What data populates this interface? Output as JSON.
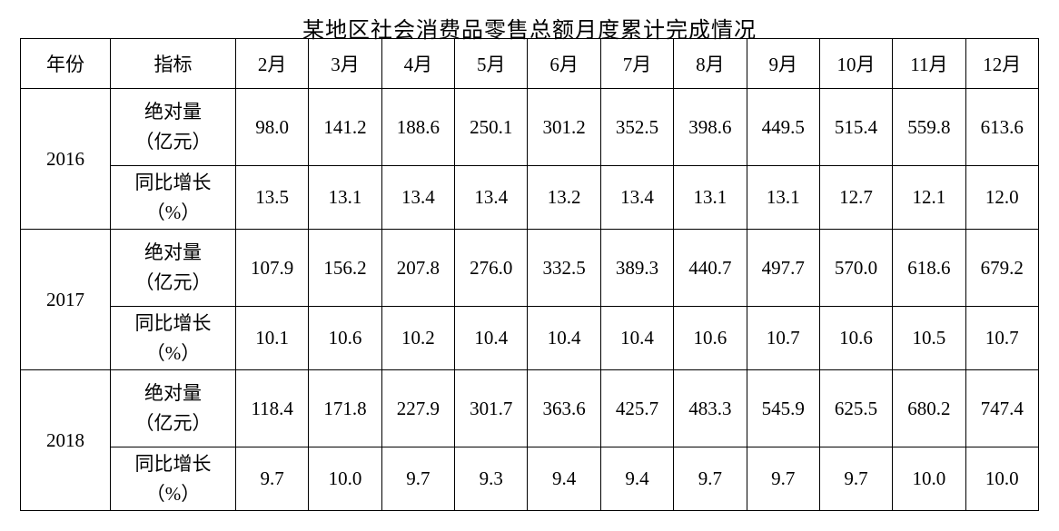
{
  "page": {
    "title": "某地区社会消费品零售总额月度累计完成情况"
  },
  "table": {
    "header": {
      "year": "年份",
      "indicator": "指标",
      "months": [
        "2月",
        "3月",
        "4月",
        "5月",
        "6月",
        "7月",
        "8月",
        "9月",
        "10月",
        "11月",
        "12月"
      ]
    },
    "groups": [
      {
        "year": "2016",
        "rows": [
          {
            "label": "绝对量\n（亿元）",
            "values": [
              "98.0",
              "141.2",
              "188.6",
              "250.1",
              "301.2",
              "352.5",
              "398.6",
              "449.5",
              "515.4",
              "559.8",
              "613.6"
            ]
          },
          {
            "label": "同比增长\n（%）",
            "values": [
              "13.5",
              "13.1",
              "13.4",
              "13.4",
              "13.2",
              "13.4",
              "13.1",
              "13.1",
              "12.7",
              "12.1",
              "12.0"
            ]
          }
        ]
      },
      {
        "year": "2017",
        "rows": [
          {
            "label": "绝对量\n（亿元）",
            "values": [
              "107.9",
              "156.2",
              "207.8",
              "276.0",
              "332.5",
              "389.3",
              "440.7",
              "497.7",
              "570.0",
              "618.6",
              "679.2"
            ]
          },
          {
            "label": "同比增长\n（%）",
            "values": [
              "10.1",
              "10.6",
              "10.2",
              "10.4",
              "10.4",
              "10.4",
              "10.6",
              "10.7",
              "10.6",
              "10.5",
              "10.7"
            ]
          }
        ]
      },
      {
        "year": "2018",
        "rows": [
          {
            "label": "绝对量\n（亿元）",
            "values": [
              "118.4",
              "171.8",
              "227.9",
              "301.7",
              "363.6",
              "425.7",
              "483.3",
              "545.9",
              "625.5",
              "680.2",
              "747.4"
            ]
          },
          {
            "label": "同比增长\n（%）",
            "values": [
              "9.7",
              "10.0",
              "9.7",
              "9.3",
              "9.4",
              "9.4",
              "9.7",
              "9.7",
              "9.7",
              "10.0",
              "10.0"
            ]
          }
        ]
      }
    ]
  },
  "chart_data": {
    "type": "table",
    "title": "某地区社会消费品零售总额月度累计完成情况",
    "categories": [
      "2月",
      "3月",
      "4月",
      "5月",
      "6月",
      "7月",
      "8月",
      "9月",
      "10月",
      "11月",
      "12月"
    ],
    "series": [
      {
        "name": "2016 绝对量（亿元）",
        "values": [
          98.0,
          141.2,
          188.6,
          250.1,
          301.2,
          352.5,
          398.6,
          449.5,
          515.4,
          559.8,
          613.6
        ]
      },
      {
        "name": "2016 同比增长（%）",
        "values": [
          13.5,
          13.1,
          13.4,
          13.4,
          13.2,
          13.4,
          13.1,
          13.1,
          12.7,
          12.1,
          12.0
        ]
      },
      {
        "name": "2017 绝对量（亿元）",
        "values": [
          107.9,
          156.2,
          207.8,
          276.0,
          332.5,
          389.3,
          440.7,
          497.7,
          570.0,
          618.6,
          679.2
        ]
      },
      {
        "name": "2017 同比增长（%）",
        "values": [
          10.1,
          10.6,
          10.2,
          10.4,
          10.4,
          10.4,
          10.6,
          10.7,
          10.6,
          10.5,
          10.7
        ]
      },
      {
        "name": "2018 绝对量（亿元）",
        "values": [
          118.4,
          171.8,
          227.9,
          301.7,
          363.6,
          425.7,
          483.3,
          545.9,
          625.5,
          680.2,
          747.4
        ]
      },
      {
        "name": "2018 同比增长（%）",
        "values": [
          9.7,
          10.0,
          9.7,
          9.3,
          9.4,
          9.4,
          9.7,
          9.7,
          9.7,
          10.0,
          10.0
        ]
      }
    ],
    "grid": true,
    "legend_position": "none"
  }
}
